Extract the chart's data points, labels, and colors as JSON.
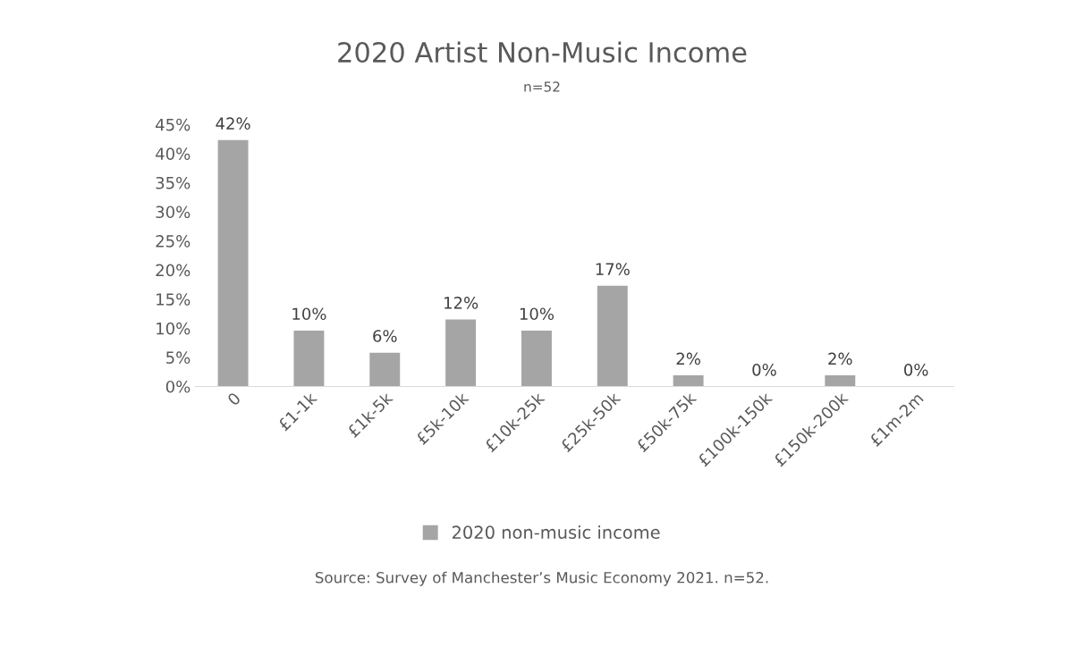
{
  "chart_data": {
    "type": "bar",
    "title": "2020 Artist Non-Music Income",
    "subtitle": "n=52",
    "categories": [
      "0",
      "£1-1k",
      "£1k-5k",
      "£5k-10k",
      "£10k-25k",
      "£25k-50k",
      "£50k-75k",
      "£100k-150k",
      "£150k-200k",
      "£1m-2m"
    ],
    "series": [
      {
        "name": "2020 non-music income",
        "color": "#a5a5a5",
        "values": [
          42.3,
          9.6,
          5.8,
          11.5,
          9.6,
          17.3,
          1.9,
          0,
          1.9,
          0
        ],
        "value_labels": [
          "42%",
          "10%",
          "6%",
          "12%",
          "10%",
          "17%",
          "2%",
          "0%",
          "2%",
          "0%"
        ]
      }
    ],
    "ylim": [
      0,
      45
    ],
    "yticks": [
      {
        "value": 0,
        "label": "0%"
      },
      {
        "value": 5,
        "label": "5%"
      },
      {
        "value": 10,
        "label": "10%"
      },
      {
        "value": 15,
        "label": "15%"
      },
      {
        "value": 20,
        "label": "20%"
      },
      {
        "value": 25,
        "label": "25%"
      },
      {
        "value": 30,
        "label": "30%"
      },
      {
        "value": 35,
        "label": "35%"
      },
      {
        "value": 40,
        "label": "40%"
      },
      {
        "value": 45,
        "label": "45%"
      }
    ],
    "grid": false,
    "legend": "bottom",
    "annotations": [
      "Source: Survey of Manchester’s Music Economy 2021. n=52."
    ]
  }
}
